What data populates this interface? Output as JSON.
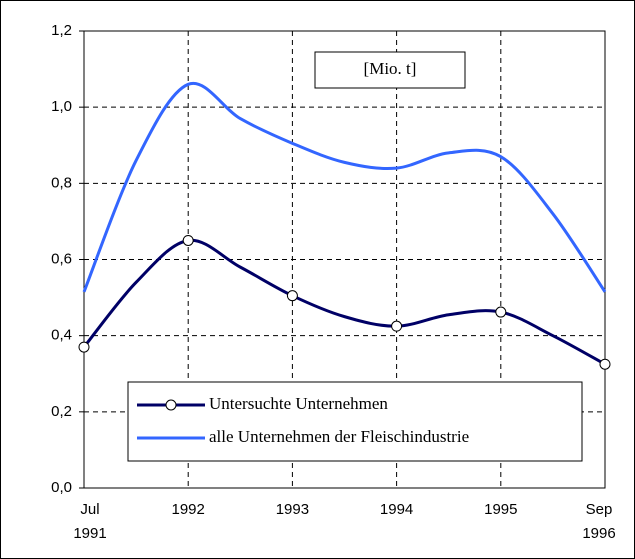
{
  "chart_data": {
    "type": "line",
    "unit_label": "[Mio. t]",
    "categories": [
      "Jul 1991",
      null,
      "1992",
      null,
      "1993",
      null,
      "1994",
      null,
      "1995",
      null,
      "Sep 1996"
    ],
    "series": [
      {
        "name": "Untersuchte Unternehmen",
        "color": "#000066",
        "markers": true,
        "values": [
          0.37,
          0.54,
          0.65,
          0.58,
          0.505,
          0.45,
          0.425,
          0.455,
          0.462,
          0.4,
          0.325
        ]
      },
      {
        "name": "alle Unternehmen der Fleischindustrie",
        "color": "#3366ff",
        "markers": false,
        "values": [
          0.515,
          0.86,
          1.06,
          0.97,
          0.905,
          0.855,
          0.84,
          0.88,
          0.87,
          0.72,
          0.515
        ]
      }
    ],
    "ylim": [
      0,
      1.2
    ],
    "yticks": [
      {
        "value": 0,
        "label": "0,0"
      },
      {
        "value": 0.2,
        "label": "0,2"
      },
      {
        "value": 0.4,
        "label": "0,4"
      },
      {
        "value": 0.6,
        "label": "0,6"
      },
      {
        "value": 0.8,
        "label": "0,8"
      },
      {
        "value": 1.0,
        "label": "1,0"
      },
      {
        "value": 1.2,
        "label": "1,2"
      }
    ],
    "grid": true
  }
}
